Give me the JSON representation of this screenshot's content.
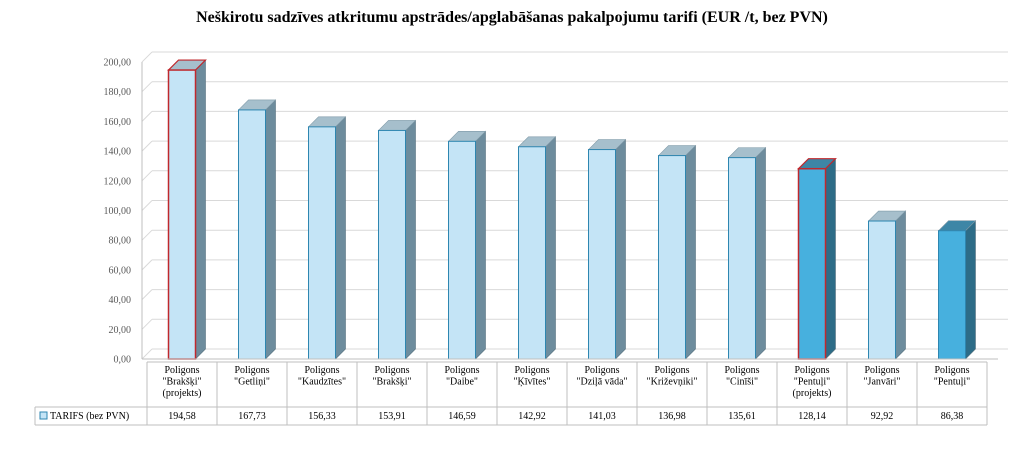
{
  "chart_data": {
    "type": "bar",
    "title": "Neškirotu sadzīves atkritumu apstrādes/apglabāšanas pakalpojumu tarifi (EUR /t, bez PVN)",
    "categories": [
      [
        "Poligons",
        "\"Brakšķi\"",
        "(projekts)"
      ],
      [
        "Poligons",
        "\"Getliņi\""
      ],
      [
        "Poligons",
        "\"Kaudzītes\""
      ],
      [
        "Poligons",
        "\"Brakšķi\""
      ],
      [
        "Poligons",
        "\"Daibe\""
      ],
      [
        "Poligons",
        "\"Ķīvītes\""
      ],
      [
        "Poligons",
        "\"Dziļā vāda\""
      ],
      [
        "Poligons",
        "\"Križevņiki\""
      ],
      [
        "Poligons",
        "\"Cinīši\""
      ],
      [
        "Poligons",
        "\"Pentuļi\"",
        "(projekts)"
      ],
      [
        "Poligons",
        "\"Janvāri\""
      ],
      [
        "Poligons",
        "\"Pentuļi\""
      ]
    ],
    "series": [
      {
        "name": "TARIFS (bez PVN)",
        "values": [
          194.58,
          167.73,
          156.33,
          153.91,
          146.59,
          142.92,
          141.03,
          136.98,
          135.61,
          128.14,
          92.92,
          86.38
        ],
        "value_labels": [
          "194,58",
          "167,73",
          "156,33",
          "153,91",
          "146,59",
          "142,92",
          "141,03",
          "136,98",
          "135,61",
          "128,14",
          "92,92",
          "86,38"
        ]
      }
    ],
    "bar_styles": [
      "outlined-red",
      "light",
      "light",
      "light",
      "light",
      "light",
      "light",
      "light",
      "light",
      "dark-outlined-red",
      "light",
      "dark"
    ],
    "ylim": [
      0,
      200
    ],
    "yticks": [
      "0,00",
      "20,00",
      "40,00",
      "60,00",
      "80,00",
      "100,00",
      "120,00",
      "140,00",
      "160,00",
      "180,00",
      "200,00"
    ],
    "grid": true,
    "legend": "data-table",
    "colors": {
      "light_front": "#c4e4f6",
      "light_side": "#6d8c9d",
      "light_top": "#a6bfcc",
      "dark_front": "#47b0de",
      "dark_side": "#2d6c87",
      "dark_top": "#3d86a6",
      "edge": "#2e86b0",
      "red_edge": "#c0282d",
      "grid": "#d9d9d9",
      "axis": "#bfbfbf"
    }
  }
}
